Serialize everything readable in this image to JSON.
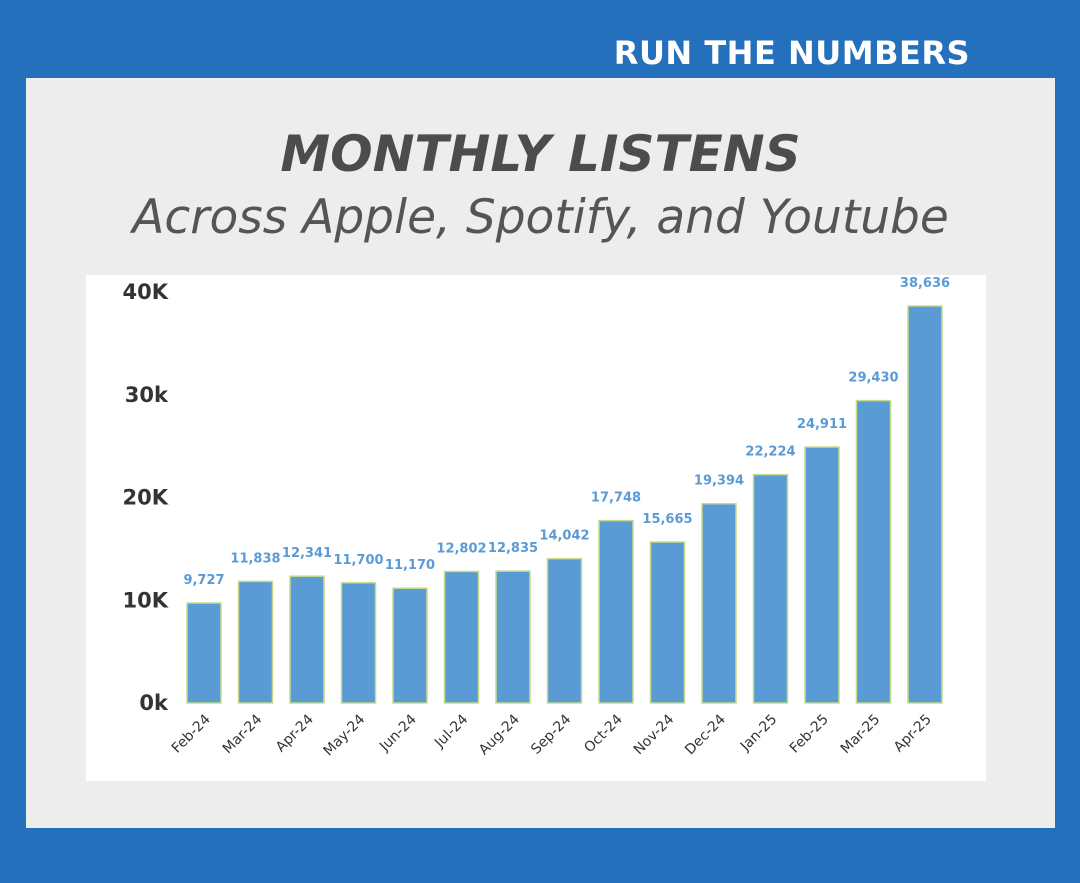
{
  "brand": "RUN THE NUMBERS",
  "title": "MONTHLY LISTENS",
  "subtitle": "Across Apple, Spotify, and Youtube",
  "colors": {
    "background": "#2470bc",
    "card": "#ededed",
    "bar": "#5b9bd5",
    "bar_edge": "#c3dc8c",
    "data_label": "#5b9bd5",
    "axis_label": "#333333"
  },
  "chart_data": {
    "type": "bar",
    "categories": [
      "Feb-24",
      "Mar-24",
      "Apr-24",
      "May-24",
      "Jun-24",
      "Jul-24",
      "Aug-24",
      "Sep-24",
      "Oct-24",
      "Nov-24",
      "Dec-24",
      "Jan-25",
      "Feb-25",
      "Mar-25",
      "Apr-25"
    ],
    "values": [
      9727,
      11838,
      12341,
      11700,
      11170,
      12802,
      12835,
      14042,
      17748,
      15665,
      19394,
      22224,
      24911,
      29430,
      38636
    ],
    "data_labels": [
      "9,727",
      "11,838",
      "12,341",
      "11,700",
      "11,170",
      "12,802",
      "12,835",
      "14,042",
      "17,748",
      "15,665",
      "19,394",
      "22,224",
      "24,911",
      "29,430",
      "38,636"
    ],
    "y_ticks": [
      {
        "value": 0,
        "label": "0k"
      },
      {
        "value": 10000,
        "label": "10K"
      },
      {
        "value": 20000,
        "label": "20K"
      },
      {
        "value": 30000,
        "label": "30k"
      },
      {
        "value": 40000,
        "label": "40K"
      }
    ],
    "ylim": [
      0,
      40000
    ],
    "grid": false,
    "legend": "none"
  }
}
